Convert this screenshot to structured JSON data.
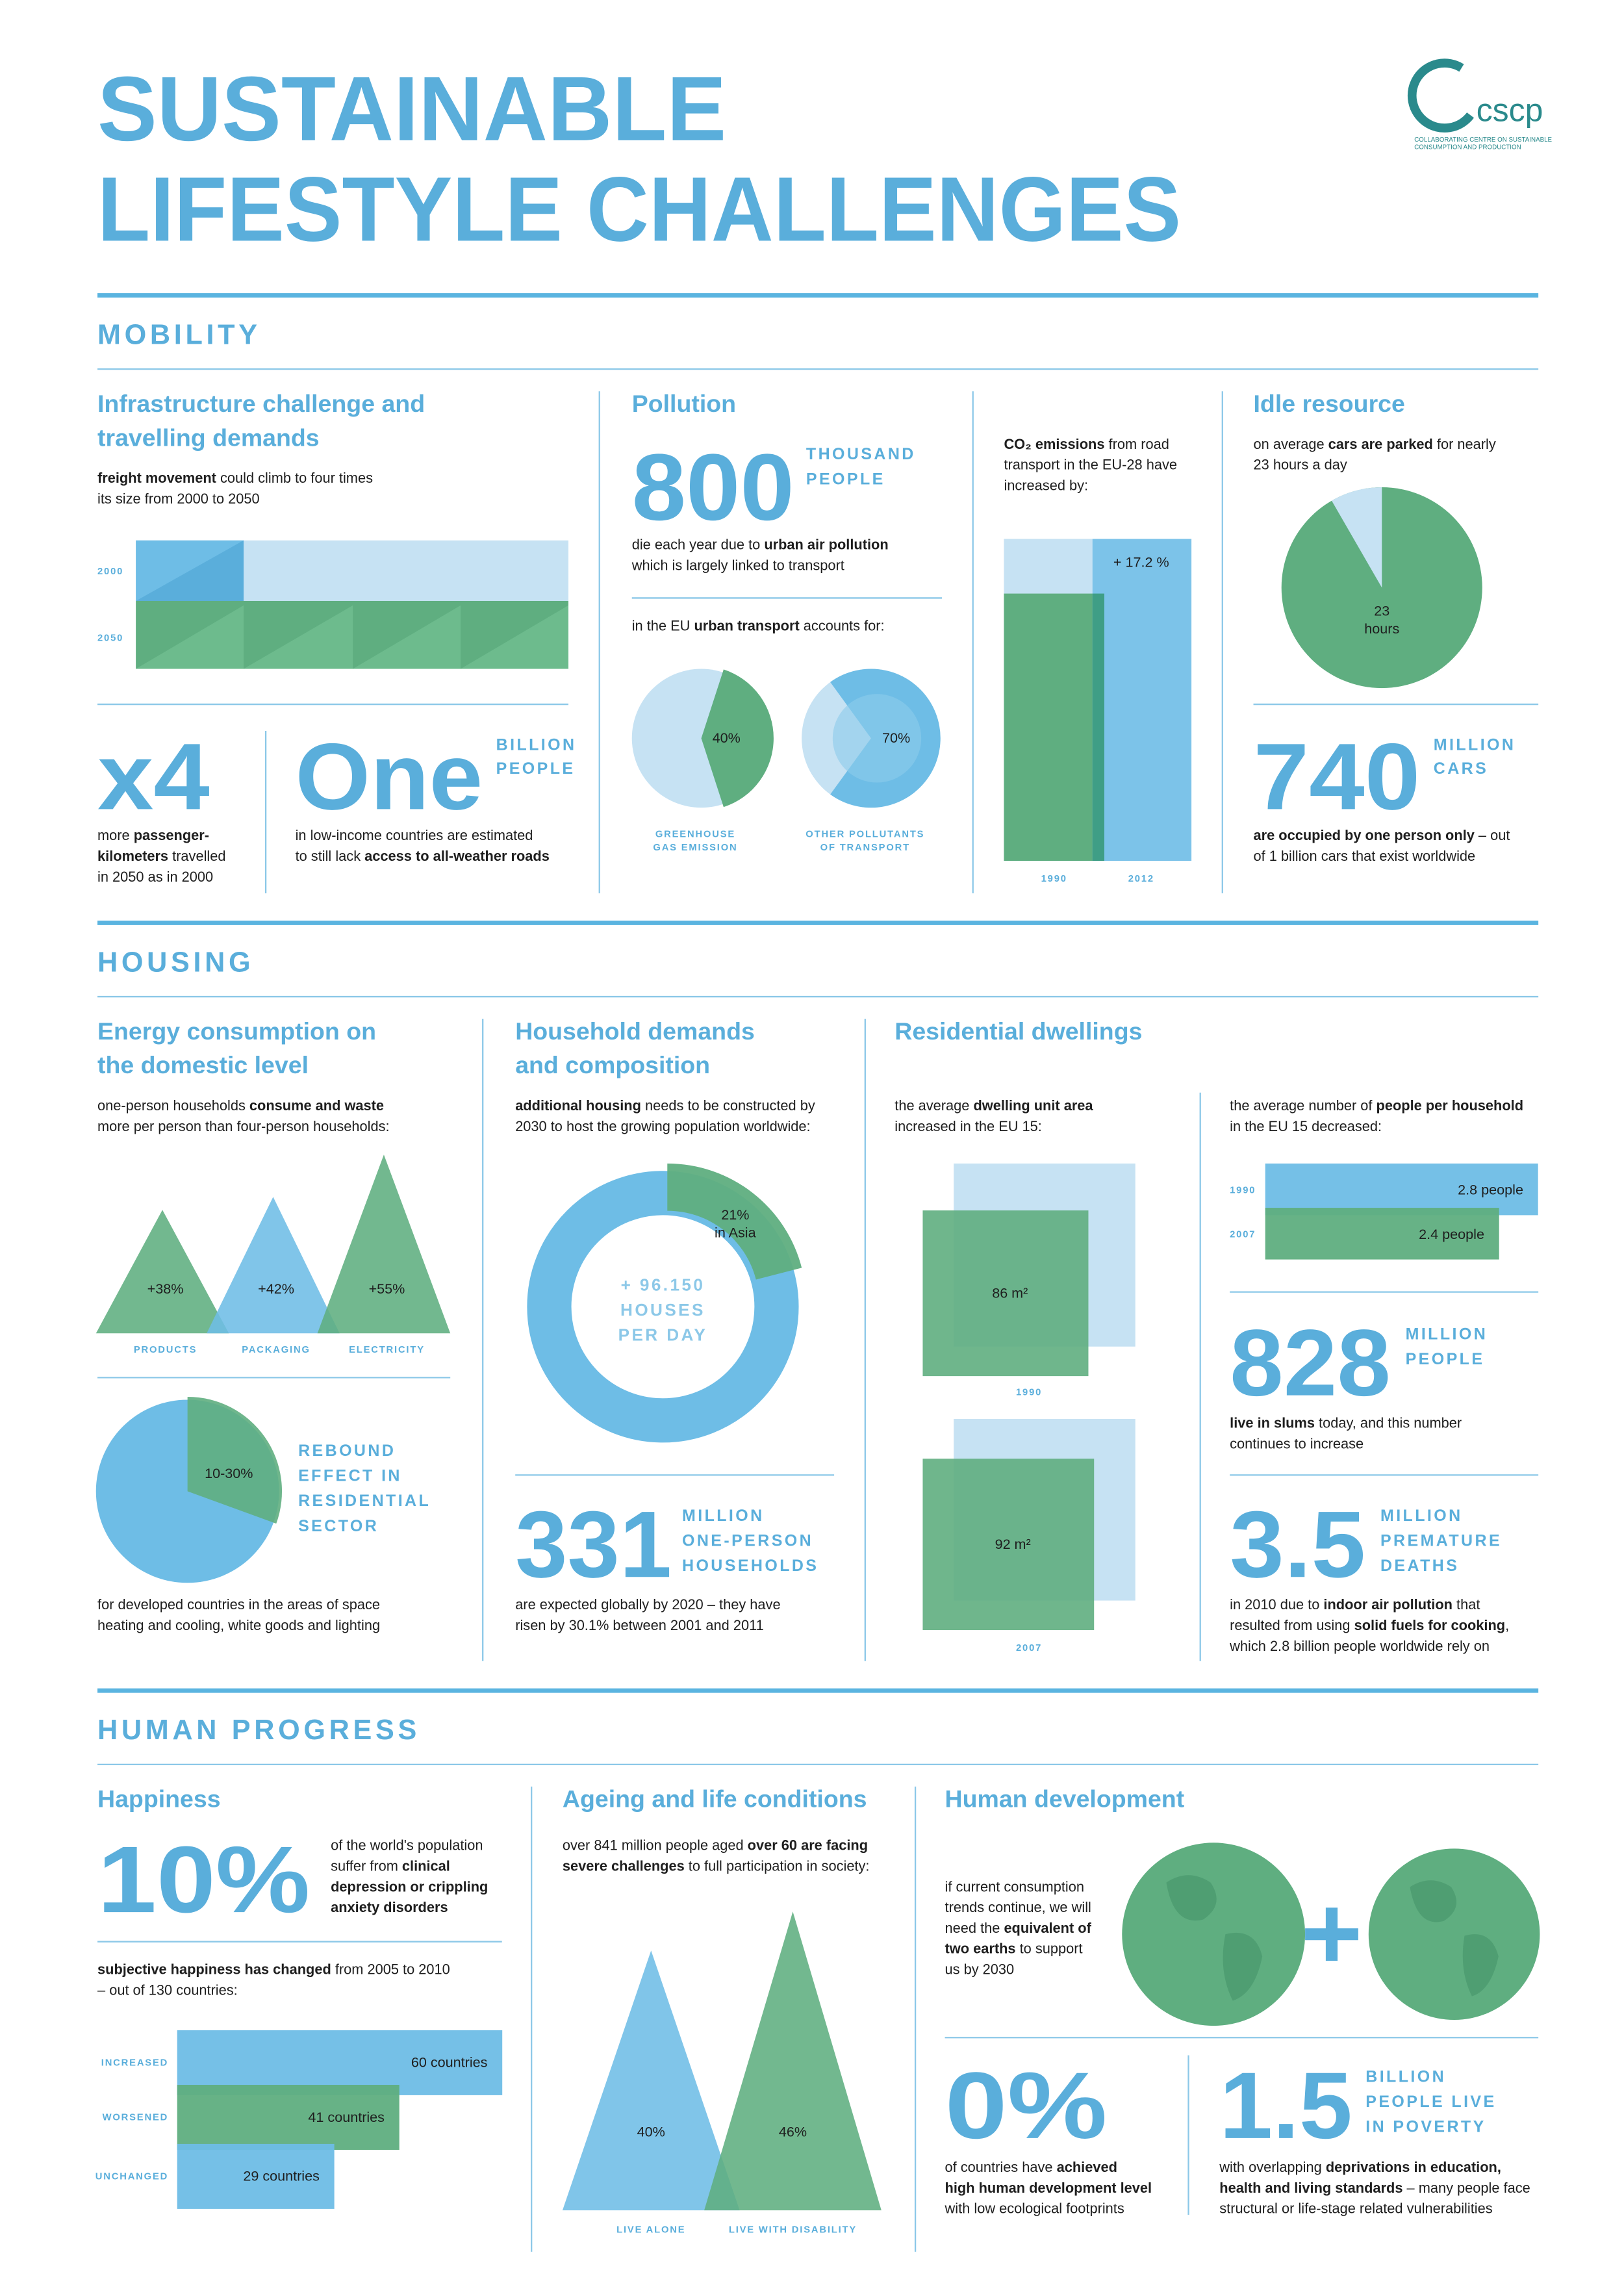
{
  "header": {
    "title": [
      "SUSTAINABLE",
      "LIFESTYLE CHALLENGES"
    ],
    "logo": {
      "name": "cscp",
      "subtitle": [
        "COLLABORATING CENTRE ON SUSTAINABLE",
        "CONSUMPTION AND PRODUCTION"
      ]
    }
  },
  "mobility": {
    "title": "MOBILITY",
    "infrastructure": {
      "heading": [
        "Infrastructure challenge and",
        "travelling demands"
      ],
      "text": [
        [
          {
            "b": "freight movement"
          },
          " could climb to four times"
        ],
        [
          "its size from 2000 to 2050"
        ]
      ],
      "chart_labels": [
        "2000",
        "2050"
      ]
    },
    "x4": {
      "figure": "x4",
      "text": [
        [
          "more ",
          {
            "b": "passenger-"
          }
        ],
        [
          {
            "b": "kilometers"
          },
          " travelled"
        ],
        [
          "in 2050 as in 2000"
        ]
      ]
    },
    "roads": {
      "figure": "One",
      "unit": [
        "BILLION",
        "PEOPLE"
      ],
      "text": [
        [
          "in low-income countries are estimated"
        ],
        [
          "to still lack ",
          {
            "b": "access to all-weather roads"
          }
        ]
      ]
    },
    "pollution": {
      "heading": "Pollution",
      "figure": "800",
      "unit": [
        "THOUSAND",
        "PEOPLE"
      ],
      "text": [
        [
          "die each year due to ",
          {
            "b": "urban air pollution"
          }
        ],
        [
          "which is largely linked to transport"
        ]
      ],
      "share_text": [
        [
          "in the EU ",
          {
            "b": "urban transport"
          },
          " accounts for:"
        ]
      ],
      "shares": [
        {
          "value": 40,
          "label": "40%",
          "caption": [
            "GREENHOUSE",
            "GAS EMISSION"
          ]
        },
        {
          "value": 70,
          "label": "70%",
          "caption": [
            "OTHER POLLUTANTS",
            "OF TRANSPORT"
          ]
        }
      ]
    },
    "co2": {
      "text": [
        [
          {
            "b": "CO₂ emissions"
          },
          " from road"
        ],
        [
          "transport in the EU-28 have"
        ],
        [
          "increased by:"
        ]
      ],
      "change": "+ 17.2 %",
      "years": [
        "1990",
        "2012"
      ]
    },
    "idle": {
      "heading": "Idle resource",
      "text": [
        [
          "on average ",
          {
            "b": "cars are parked"
          },
          " for nearly"
        ],
        [
          "23 hours a day"
        ]
      ],
      "pie_label": [
        "23",
        "hours"
      ]
    },
    "cars": {
      "figure": "740",
      "unit": [
        "MILLION",
        "CARS"
      ],
      "text": [
        [
          {
            "b": "are occupied by one person only"
          },
          " – out"
        ],
        [
          "of 1 billion cars that exist worldwide"
        ]
      ]
    }
  },
  "housing": {
    "title": "HOUSING",
    "energy": {
      "heading": [
        "Energy consumption on",
        "the domestic level"
      ],
      "text": [
        [
          "one-person households ",
          {
            "b": "consume and waste"
          }
        ],
        [
          "more per person than four-person households:"
        ]
      ],
      "items": [
        {
          "value": 38,
          "label": "+38%",
          "caption": "PRODUCTS"
        },
        {
          "value": 42,
          "label": "+42%",
          "caption": "PACKAGING"
        },
        {
          "value": 55,
          "label": "+55%",
          "caption": "ELECTRICITY"
        }
      ]
    },
    "rebound": {
      "label": "10-30%",
      "title": [
        "REBOUND",
        "EFFECT IN",
        "RESIDENTIAL",
        "SECTOR"
      ],
      "text": [
        [
          "for developed countries in the areas of space"
        ],
        [
          "heating and cooling, white goods and lighting"
        ]
      ]
    },
    "household": {
      "heading": [
        "Household demands",
        "and composition"
      ],
      "text": [
        [
          {
            "b": "additional housing"
          },
          " needs to be constructed by"
        ],
        [
          "2030 to host the growing population worldwide:"
        ]
      ],
      "share": 21,
      "share_label": "21%",
      "share_note": "in Asia",
      "center": [
        "+ 96.150",
        "HOUSES",
        "PER DAY"
      ]
    },
    "one_person": {
      "figure": "331",
      "unit": [
        "MILLION",
        "ONE-PERSON",
        "HOUSEHOLDS"
      ],
      "text": [
        [
          "are expected globally by 2020 – they have"
        ],
        [
          "risen by 30.1% between 2001 and 2011"
        ]
      ]
    },
    "dwellings": {
      "heading": "Residential dwellings",
      "text": [
        [
          "the average ",
          {
            "b": "dwelling unit area"
          }
        ],
        [
          "increased in the EU 15:"
        ]
      ],
      "areas": [
        {
          "year": "1990",
          "value": 86,
          "label": "86 m²"
        },
        {
          "year": "2007",
          "value": 92,
          "label": "92 m²"
        }
      ]
    },
    "people": {
      "text": [
        [
          "the average number of ",
          {
            "b": "people per household"
          }
        ],
        [
          "in the EU 15 decreased:"
        ]
      ],
      "bars": [
        {
          "year": "1990",
          "value": 2.8,
          "label": "2.8 people"
        },
        {
          "year": "2007",
          "value": 2.4,
          "label": "2.4 people"
        }
      ]
    },
    "slums": {
      "figure": "828",
      "unit": [
        "MILLION",
        "PEOPLE"
      ],
      "text": [
        [
          {
            "b": "live in slums"
          },
          " today, and this number"
        ],
        [
          "continues to increase"
        ]
      ]
    },
    "deaths": {
      "figure": "3.5",
      "unit": [
        "MILLION",
        "PREMATURE",
        "DEATHS"
      ],
      "text": [
        [
          "in 2010 due to ",
          {
            "b": "indoor air pollution"
          },
          " that"
        ],
        [
          "resulted from using ",
          {
            "b": "solid fuels for cooking"
          },
          ","
        ],
        [
          "which 2.8 billion people worldwide rely on"
        ]
      ]
    }
  },
  "human_progress": {
    "title": "HUMAN PROGRESS",
    "happiness": {
      "heading": "Happiness",
      "figure": "10%",
      "text": [
        [
          "of the world's population"
        ],
        [
          "suffer from ",
          {
            "b": "clinical"
          }
        ],
        [
          {
            "b": "depression or crippling"
          }
        ],
        [
          {
            "b": "anxiety disorders"
          }
        ]
      ],
      "change_text": [
        [
          {
            "b": "subjective happiness has changed"
          },
          " from 2005 to 2010"
        ],
        [
          "– out of 130 countries:"
        ]
      ],
      "bars": [
        {
          "name": "INCREASED",
          "value": 60,
          "label": "60 countries"
        },
        {
          "name": "WORSENED",
          "value": 41,
          "label": "41 countries"
        },
        {
          "name": "UNCHANGED",
          "value": 29,
          "label": "29 countries"
        }
      ]
    },
    "ageing": {
      "heading": "Ageing and life conditions",
      "text": [
        [
          "over 841 million people aged ",
          {
            "b": "over 60 are facing"
          }
        ],
        [
          {
            "b": "severe challenges"
          },
          " to full participation in society:"
        ]
      ],
      "items": [
        {
          "value": 40,
          "label": "40%",
          "caption": "LIVE ALONE"
        },
        {
          "value": 46,
          "label": "46%",
          "caption": "LIVE WITH DISABILITY"
        }
      ]
    },
    "development": {
      "heading": "Human development",
      "text": [
        [
          "if current consumption"
        ],
        [
          "trends continue, we will"
        ],
        [
          "need the ",
          {
            "b": "equivalent of"
          }
        ],
        [
          {
            "b": "two earths"
          },
          " to support"
        ],
        [
          "us by 2030"
        ]
      ]
    },
    "hdi": {
      "figure": "0%",
      "text": [
        [
          "of countries have ",
          {
            "b": "achieved"
          }
        ],
        [
          {
            "b": "high human development level"
          }
        ],
        [
          "with low ecological footprints"
        ]
      ]
    },
    "poverty": {
      "figure": "1.5",
      "unit": [
        "BILLION",
        "PEOPLE LIVE",
        "IN POVERTY"
      ],
      "text": [
        [
          "with overlapping ",
          {
            "b": "deprivations in education,"
          }
        ],
        [
          {
            "b": "health and living standards"
          },
          " – many people face"
        ],
        [
          "structural or life-stage related vulnerabilities"
        ]
      ]
    }
  }
}
